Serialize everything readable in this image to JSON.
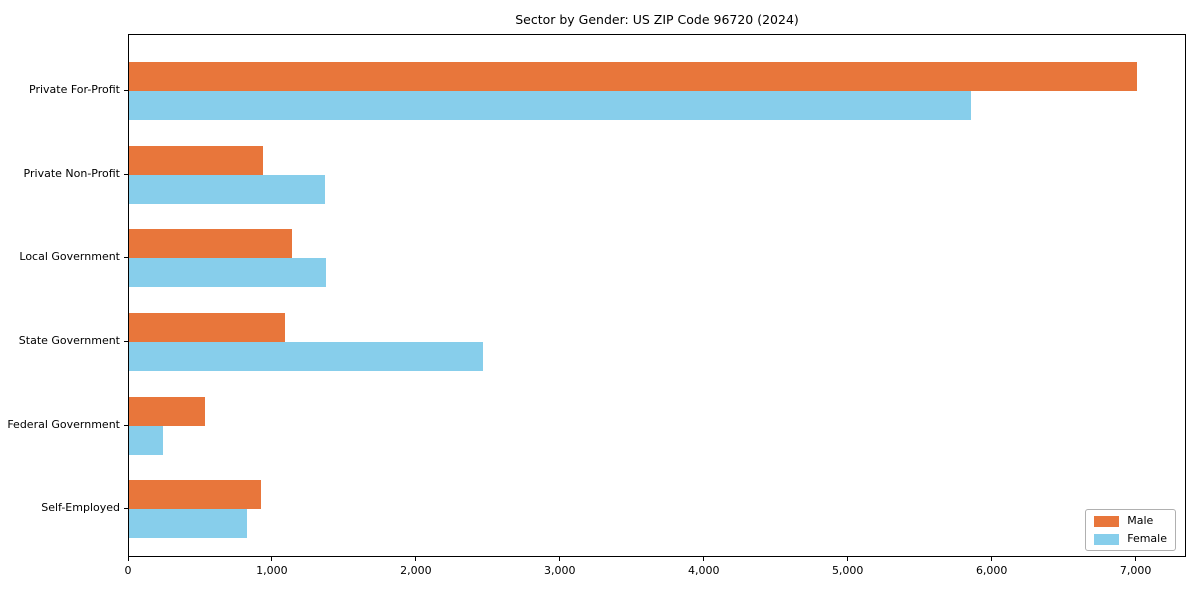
{
  "chart_data": {
    "type": "bar",
    "orientation": "horizontal",
    "title": "Sector by Gender: US ZIP Code 96720 (2024)",
    "categories": [
      "Private For-Profit",
      "Private Non-Profit",
      "Local Government",
      "State Government",
      "Federal Government",
      "Self-Employed"
    ],
    "series": [
      {
        "name": "Male",
        "color": "#E8763B",
        "values": [
          7000,
          930,
          1130,
          1080,
          530,
          920
        ]
      },
      {
        "name": "Female",
        "color": "#87CEEB",
        "values": [
          5850,
          1360,
          1370,
          2460,
          235,
          820
        ]
      }
    ],
    "xlim": [
      0,
      7350
    ],
    "xticks": [
      0,
      1000,
      2000,
      3000,
      4000,
      5000,
      6000,
      7000
    ],
    "xtick_labels": [
      "0",
      "1,000",
      "2,000",
      "3,000",
      "4,000",
      "5,000",
      "6,000",
      "7,000"
    ],
    "xlabel": "",
    "ylabel": "",
    "grid": false,
    "legend": {
      "location": "lower right",
      "labels": [
        "Male",
        "Female"
      ]
    },
    "colors": {
      "axis": "#000000",
      "background": "#ffffff",
      "legend_border": "#b0b0b0"
    }
  }
}
